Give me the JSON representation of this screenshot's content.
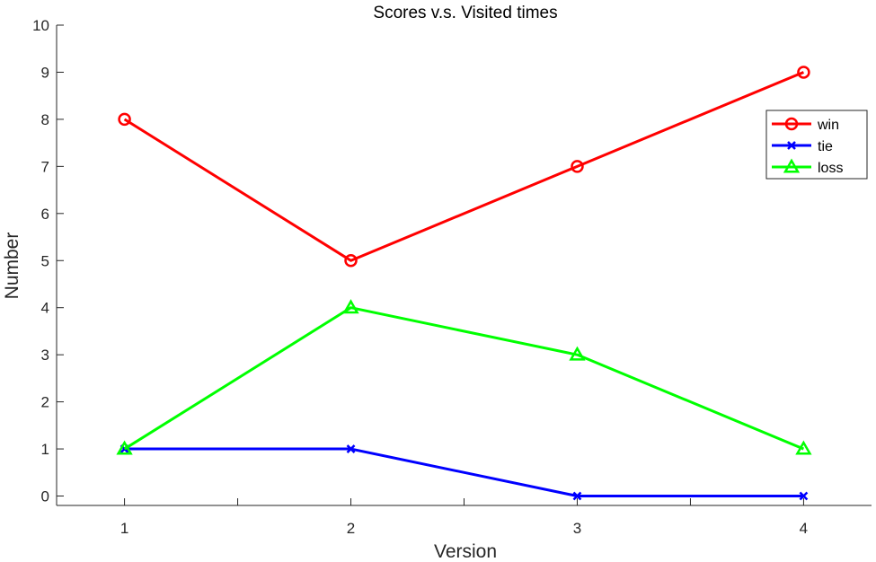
{
  "chart_data": {
    "type": "line",
    "title": "Scores v.s. Visited times",
    "xlabel": "Version",
    "ylabel": "Number",
    "x": [
      1,
      2,
      3,
      4
    ],
    "xlim": [
      0.7,
      4.3
    ],
    "ylim": [
      -0.2,
      10
    ],
    "xticks": [
      1,
      2,
      3,
      4
    ],
    "xminor_ticks": [
      1.5,
      2.5,
      3.5
    ],
    "yticks": [
      0,
      1,
      2,
      3,
      4,
      5,
      6,
      7,
      8,
      9,
      10
    ],
    "grid": false,
    "legend_position": "top-right",
    "series": [
      {
        "name": "win",
        "values": [
          8,
          5,
          7,
          9
        ],
        "color": "#ff0000",
        "marker": "circle"
      },
      {
        "name": "tie",
        "values": [
          1,
          1,
          0,
          0
        ],
        "color": "#0000ff",
        "marker": "x"
      },
      {
        "name": "loss",
        "values": [
          1,
          4,
          3,
          1
        ],
        "color": "#00ff00",
        "marker": "triangle"
      }
    ]
  }
}
